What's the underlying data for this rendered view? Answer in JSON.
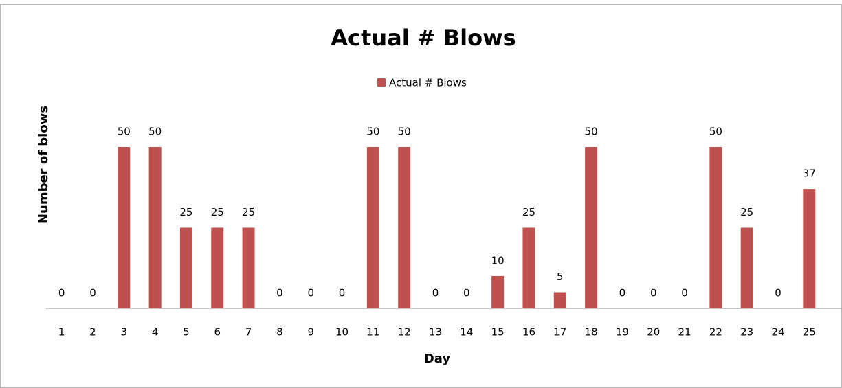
{
  "chart_data": {
    "type": "bar",
    "title": "Actual # Blows",
    "x_label": "Day",
    "y_label": "Number of blows",
    "categories": [
      "1",
      "2",
      "3",
      "4",
      "5",
      "6",
      "7",
      "8",
      "9",
      "10",
      "11",
      "12",
      "13",
      "14",
      "15",
      "16",
      "17",
      "18",
      "19",
      "20",
      "21",
      "22",
      "23",
      "24",
      "25"
    ],
    "series": [
      {
        "name": "Actual # Blows",
        "color": "#c0504d",
        "values": [
          0,
          0,
          50,
          50,
          25,
          25,
          25,
          0,
          0,
          0,
          50,
          50,
          0,
          0,
          10,
          25,
          5,
          50,
          0,
          0,
          0,
          50,
          25,
          0,
          37
        ]
      }
    ],
    "ylim": [
      0,
      60
    ],
    "legend": "top"
  }
}
